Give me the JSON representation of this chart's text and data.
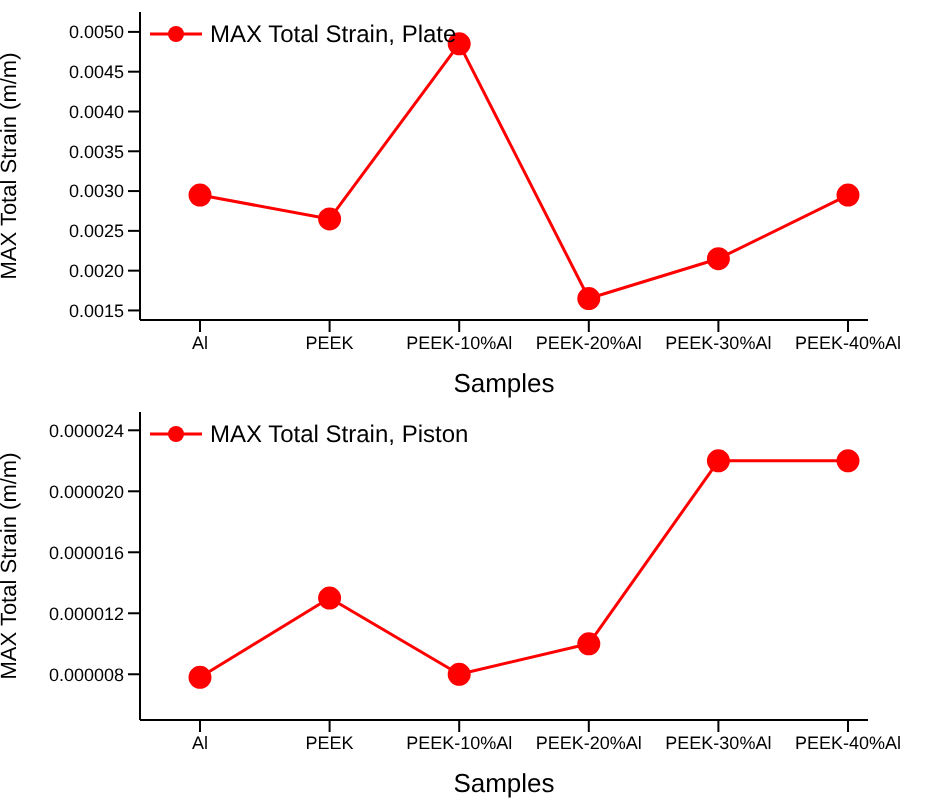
{
  "chart_data": [
    {
      "type": "line",
      "xlabel": "Samples",
      "ylabel": "MAX Total Strain (m/m)",
      "categories": [
        "Al",
        "PEEK",
        "PEEK-10%Al",
        "PEEK-20%Al",
        "PEEK-30%Al",
        "PEEK-40%Al"
      ],
      "series": [
        {
          "name": "MAX Total Strain, Plate",
          "color": "#ff0000",
          "values": [
            0.00295,
            0.00265,
            0.00485,
            0.00165,
            0.00215,
            0.00295
          ]
        }
      ],
      "ylim": [
        0.00138,
        0.00525
      ],
      "yticks": [
        {
          "value": 0.0015,
          "label": "0.0015"
        },
        {
          "value": 0.002,
          "label": "0.0020"
        },
        {
          "value": 0.0025,
          "label": "0.0025"
        },
        {
          "value": 0.003,
          "label": "0.0030"
        },
        {
          "value": 0.0035,
          "label": "0.0035"
        },
        {
          "value": 0.004,
          "label": "0.0040"
        },
        {
          "value": 0.0045,
          "label": "0.0045"
        },
        {
          "value": 0.005,
          "label": "0.0050"
        }
      ],
      "legend": "top left",
      "marker": "circle",
      "grid": false
    },
    {
      "type": "line",
      "xlabel": "Samples",
      "ylabel": "MAX Total Strain (m/m)",
      "categories": [
        "Al",
        "PEEK",
        "PEEK-10%Al",
        "PEEK-20%Al",
        "PEEK-30%Al",
        "PEEK-40%Al"
      ],
      "series": [
        {
          "name": "MAX Total Strain, Piston",
          "color": "#ff0000",
          "values": [
            7.8e-06,
            1.3e-05,
            8e-06,
            1e-05,
            2.2e-05,
            2.2e-05
          ]
        }
      ],
      "ylim": [
        5e-06,
        2.52e-05
      ],
      "yticks": [
        {
          "value": 8e-06,
          "label": "0.000008"
        },
        {
          "value": 1.2e-05,
          "label": "0.000012"
        },
        {
          "value": 1.6e-05,
          "label": "0.000016"
        },
        {
          "value": 2e-05,
          "label": "0.000020"
        },
        {
          "value": 2.4e-05,
          "label": "0.000024"
        }
      ],
      "legend": "top left",
      "marker": "circle",
      "grid": false
    }
  ]
}
